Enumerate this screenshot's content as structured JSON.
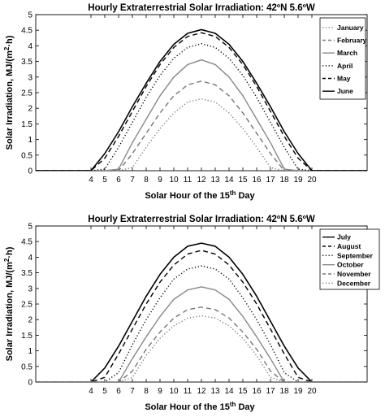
{
  "chart_data": [
    {
      "type": "line",
      "title": "Hourly Extraterrestrial Solar Irradiation: 42ºN 5.6ºW",
      "xlabel": "Solar Hour of the 15th Day",
      "xlabel_main": "Solar Hour of the 15",
      "xlabel_sup": "th",
      "xlabel_end": " Day",
      "ylabel": "Solar Irradiation, MJ/(m2·h)",
      "ylabel_main": "Solar Irradiation, MJ/(m",
      "ylabel_sup": "2",
      "ylabel_end": "·h)",
      "xlim": [
        0,
        24
      ],
      "ylim": [
        0,
        5
      ],
      "xticks": [
        "4",
        "5",
        "6",
        "7",
        "8",
        "9",
        "10",
        "11",
        "12",
        "13",
        "14",
        "15",
        "16",
        "17",
        "18",
        "19",
        "20"
      ],
      "yticks": [
        "0",
        "0.5",
        "1",
        "1.5",
        "2",
        "2.5",
        "3",
        "3.5",
        "4",
        "4.5",
        "5"
      ],
      "legend_position": "top-right",
      "x": [
        0,
        1,
        2,
        3,
        4,
        5,
        6,
        7,
        8,
        9,
        10,
        11,
        12,
        13,
        14,
        15,
        16,
        17,
        18,
        19,
        20,
        21,
        22,
        23,
        24
      ],
      "series": [
        {
          "name": "January",
          "style": "dotted",
          "color": "#777777",
          "values": [
            0,
            0,
            0,
            0,
            0,
            0,
            0,
            0.1,
            0.75,
            1.35,
            1.85,
            2.2,
            2.3,
            2.2,
            1.85,
            1.35,
            0.75,
            0.1,
            0,
            0,
            0,
            0,
            0,
            0,
            0
          ]
        },
        {
          "name": "February",
          "style": "dashed",
          "color": "#777777",
          "values": [
            0,
            0,
            0,
            0,
            0,
            0,
            0,
            0.55,
            1.2,
            1.85,
            2.4,
            2.75,
            2.87,
            2.75,
            2.4,
            1.85,
            1.2,
            0.55,
            0,
            0,
            0,
            0,
            0,
            0,
            0
          ]
        },
        {
          "name": "March",
          "style": "solid",
          "color": "#888888",
          "values": [
            0,
            0,
            0,
            0,
            0,
            0,
            0.05,
            0.9,
            1.65,
            2.4,
            3.0,
            3.4,
            3.55,
            3.4,
            3.0,
            2.4,
            1.65,
            0.9,
            0.05,
            0,
            0,
            0,
            0,
            0,
            0
          ]
        },
        {
          "name": "April",
          "style": "dotted",
          "color": "#000000",
          "values": [
            0,
            0,
            0,
            0,
            0,
            0.05,
            0.75,
            1.55,
            2.35,
            3.05,
            3.6,
            3.95,
            4.07,
            3.95,
            3.6,
            3.05,
            2.35,
            1.55,
            0.75,
            0.05,
            0,
            0,
            0,
            0,
            0
          ]
        },
        {
          "name": "May",
          "style": "dashed",
          "color": "#000000",
          "values": [
            0,
            0,
            0,
            0,
            0,
            0.4,
            1.1,
            1.9,
            2.7,
            3.4,
            3.95,
            4.3,
            4.42,
            4.3,
            3.95,
            3.4,
            2.7,
            1.9,
            1.1,
            0.4,
            0,
            0,
            0,
            0,
            0
          ]
        },
        {
          "name": "June",
          "style": "solid",
          "color": "#000000",
          "values": [
            0,
            0,
            0,
            0,
            0,
            0.55,
            1.25,
            2.05,
            2.8,
            3.5,
            4.05,
            4.4,
            4.52,
            4.4,
            4.05,
            3.5,
            2.8,
            2.05,
            1.25,
            0.55,
            0,
            0,
            0,
            0,
            0
          ]
        }
      ]
    },
    {
      "type": "line",
      "title": "Hourly Extraterrestrial Solar Irradiation: 42ºN 5.6ºW",
      "xlabel": "Solar Hour of the 15th Day",
      "xlabel_main": "Solar Hour of the 15",
      "xlabel_sup": "th",
      "xlabel_end": " Day",
      "ylabel": "Solar Irradiation, MJ/(m2·h)",
      "ylabel_main": "Solar Irradiation, MJ/(m",
      "ylabel_sup": "2",
      "ylabel_end": "·h)",
      "xlim": [
        0,
        24
      ],
      "ylim": [
        0,
        5
      ],
      "xticks": [
        "4",
        "5",
        "6",
        "7",
        "8",
        "9",
        "10",
        "11",
        "12",
        "13",
        "14",
        "15",
        "16",
        "17",
        "18",
        "19",
        "20"
      ],
      "yticks": [
        "0",
        "0.5",
        "1",
        "1.5",
        "2",
        "2.5",
        "3",
        "3.5",
        "4",
        "4.5",
        "5"
      ],
      "legend_position": "top-right",
      "x": [
        0,
        1,
        2,
        3,
        4,
        5,
        6,
        7,
        8,
        9,
        10,
        11,
        12,
        13,
        14,
        15,
        16,
        17,
        18,
        19,
        20,
        21,
        22,
        23,
        24
      ],
      "series": [
        {
          "name": "July",
          "style": "solid",
          "color": "#000000",
          "values": [
            0,
            0,
            0,
            0,
            0,
            0.45,
            1.15,
            1.95,
            2.75,
            3.45,
            4.0,
            4.35,
            4.45,
            4.35,
            4.0,
            3.45,
            2.75,
            1.95,
            1.15,
            0.45,
            0,
            0,
            0,
            0,
            0
          ]
        },
        {
          "name": "August",
          "style": "dashed",
          "color": "#000000",
          "values": [
            0,
            0,
            0,
            0,
            0,
            0.15,
            0.9,
            1.7,
            2.5,
            3.2,
            3.75,
            4.1,
            4.22,
            4.1,
            3.75,
            3.2,
            2.5,
            1.7,
            0.9,
            0.15,
            0,
            0,
            0,
            0,
            0
          ]
        },
        {
          "name": "September",
          "style": "dotted",
          "color": "#000000",
          "values": [
            0,
            0,
            0,
            0,
            0,
            0,
            0.3,
            1.2,
            2.0,
            2.7,
            3.3,
            3.62,
            3.72,
            3.62,
            3.3,
            2.7,
            2.0,
            1.2,
            0.3,
            0,
            0,
            0,
            0,
            0,
            0
          ]
        },
        {
          "name": "October",
          "style": "solid",
          "color": "#888888",
          "values": [
            0,
            0,
            0,
            0,
            0,
            0,
            0,
            0.75,
            1.45,
            2.1,
            2.65,
            2.95,
            3.05,
            2.95,
            2.65,
            2.1,
            1.45,
            0.75,
            0,
            0,
            0,
            0,
            0,
            0,
            0
          ]
        },
        {
          "name": "November",
          "style": "dashed",
          "color": "#777777",
          "values": [
            0,
            0,
            0,
            0,
            0,
            0,
            0,
            0.35,
            1.05,
            1.6,
            2.05,
            2.32,
            2.4,
            2.32,
            2.05,
            1.6,
            1.05,
            0.35,
            0,
            0,
            0,
            0,
            0,
            0,
            0
          ]
        },
        {
          "name": "December",
          "style": "dotted",
          "color": "#777777",
          "values": [
            0,
            0,
            0,
            0,
            0,
            0,
            0,
            0.15,
            0.85,
            1.4,
            1.8,
            2.05,
            2.12,
            2.05,
            1.8,
            1.4,
            0.85,
            0.15,
            0,
            0,
            0,
            0,
            0,
            0,
            0
          ]
        }
      ]
    }
  ]
}
